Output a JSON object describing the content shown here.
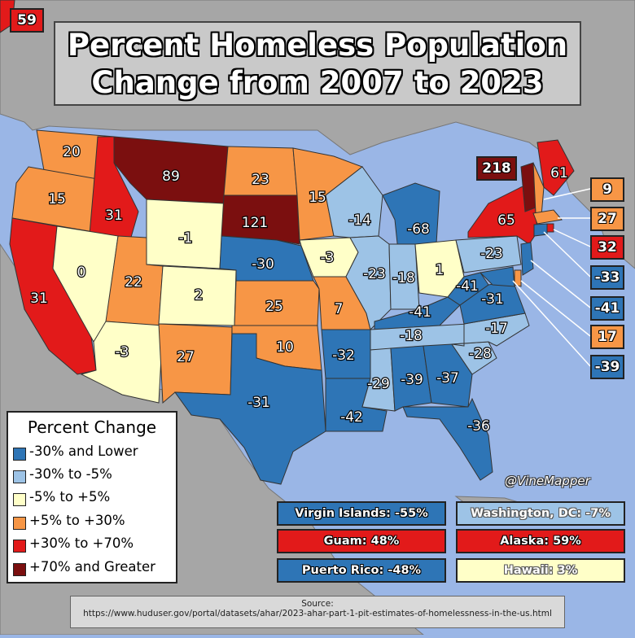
{
  "title": {
    "line1": "Percent Homeless Population",
    "line2": "Change from 2007 to 2023"
  },
  "colors": {
    "lowest": "#2e75b6",
    "low": "#9dc3e6",
    "neutral": "#ffffc8",
    "high": "#f79646",
    "higher": "#e21a1a",
    "highest": "#7b0f0f",
    "ocean": "#9ab6e6",
    "land": "#a6a6a6"
  },
  "legend": {
    "title": "Percent Change",
    "items": [
      {
        "label": "-30% and Lower",
        "color": "#2e75b6"
      },
      {
        "label": "-30% to -5%",
        "color": "#9dc3e6"
      },
      {
        "label": "-5% to +5%",
        "color": "#ffffc8"
      },
      {
        "label": "+5% to +30%",
        "color": "#f79646"
      },
      {
        "label": "+30% to +70%",
        "color": "#e21a1a"
      },
      {
        "label": "+70% and Greater",
        "color": "#7b0f0f"
      }
    ]
  },
  "states": [
    {
      "state": "WA",
      "value": 20
    },
    {
      "state": "OR",
      "value": 15
    },
    {
      "state": "CA",
      "value": 31
    },
    {
      "state": "ID",
      "value": 31
    },
    {
      "state": "NV",
      "value": 0
    },
    {
      "state": "MT",
      "value": 89
    },
    {
      "state": "WY",
      "value": -1
    },
    {
      "state": "UT",
      "value": 22
    },
    {
      "state": "AZ",
      "value": -3
    },
    {
      "state": "CO",
      "value": 2
    },
    {
      "state": "NM",
      "value": 27
    },
    {
      "state": "ND",
      "value": 23
    },
    {
      "state": "SD",
      "value": 121
    },
    {
      "state": "NE",
      "value": -30
    },
    {
      "state": "KS",
      "value": 25
    },
    {
      "state": "OK",
      "value": 10
    },
    {
      "state": "TX",
      "value": -31
    },
    {
      "state": "MN",
      "value": 15
    },
    {
      "state": "IA",
      "value": -3
    },
    {
      "state": "MO",
      "value": 7
    },
    {
      "state": "AR",
      "value": -32
    },
    {
      "state": "LA",
      "value": -42
    },
    {
      "state": "WI",
      "value": -14
    },
    {
      "state": "IL",
      "value": -23
    },
    {
      "state": "MI",
      "value": -68
    },
    {
      "state": "IN",
      "value": -18
    },
    {
      "state": "OH",
      "value": 1
    },
    {
      "state": "KY",
      "value": -41
    },
    {
      "state": "TN",
      "value": -18
    },
    {
      "state": "MS",
      "value": -29
    },
    {
      "state": "AL",
      "value": -39
    },
    {
      "state": "GA",
      "value": -37
    },
    {
      "state": "FL",
      "value": -36
    },
    {
      "state": "SC",
      "value": -28
    },
    {
      "state": "NC",
      "value": -17
    },
    {
      "state": "VA",
      "value": -31
    },
    {
      "state": "WV",
      "value": -41
    },
    {
      "state": "PA",
      "value": -23
    },
    {
      "state": "NY",
      "value": 65
    },
    {
      "state": "VT",
      "value": 218
    },
    {
      "state": "ME",
      "value": 61
    },
    {
      "state": "NH",
      "value": 9
    },
    {
      "state": "MA",
      "value": 27
    },
    {
      "state": "RI",
      "value": 32
    },
    {
      "state": "CT",
      "value": -33
    },
    {
      "state": "NJ",
      "value": -41
    },
    {
      "state": "DE",
      "value": 17
    },
    {
      "state": "MD",
      "value": -39
    },
    {
      "state": "AK",
      "value": 59
    }
  ],
  "territories": [
    {
      "label": "Virgin Islands: -55%",
      "color": "#2e75b6"
    },
    {
      "label": "Washington, DC: -7%",
      "color": "#9dc3e6"
    },
    {
      "label": "Guam: 48%",
      "color": "#e21a1a"
    },
    {
      "label": "Alaska: 59%",
      "color": "#e21a1a"
    },
    {
      "label": "Puerto Rico: -48%",
      "color": "#2e75b6"
    },
    {
      "label": "Hawaii: 3%",
      "color": "#ffffc8"
    }
  ],
  "credit": "@VineMapper",
  "source": {
    "label": "Source:",
    "url": "https://www.huduser.gov/portal/datasets/ahar/2023-ahar-part-1-pit-estimates-of-homelessness-in-the-us.html"
  }
}
